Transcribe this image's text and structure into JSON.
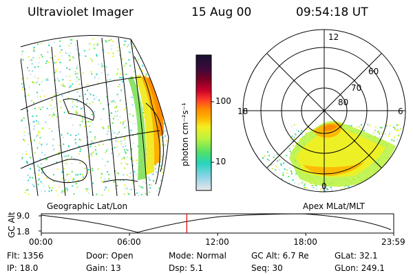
{
  "header": {
    "instrument": "Ultraviolet Imager",
    "date": "15 Aug 00",
    "time": "09:54:18 UT"
  },
  "colorbar": {
    "unit_label": "photon cm⁻²s⁻¹",
    "ticks": [
      "100",
      "10"
    ],
    "colors": [
      "#1a1030",
      "#3b0a3a",
      "#7a0025",
      "#c8002a",
      "#ff3a2a",
      "#ff8c00",
      "#ffb000",
      "#f3ef20",
      "#b9f23c",
      "#4fe06a",
      "#25d4bc",
      "#8fd3e8",
      "#e8e8e8"
    ]
  },
  "polar_plot": {
    "mlt_labels": {
      "top": "12",
      "left": "18",
      "right": "6",
      "bottom": "0"
    },
    "lat_labels": [
      "60",
      "70",
      "80"
    ]
  },
  "map_labels": {
    "left": "Geographic Lat/Lon",
    "right": "Apex MLat/MLT"
  },
  "altitude_strip": {
    "axis_label": "GC Alt",
    "y_ticks": [
      "9.0",
      "1.8"
    ],
    "time_ticks": [
      "00:00",
      "06:00",
      "12:00",
      "18:00",
      "23:59"
    ],
    "marker_time": "09:54",
    "marker_color": "#e00000"
  },
  "info": {
    "flt": "Flt: 1356",
    "ip": "IP: 18.0",
    "door": "Door: Open",
    "gain": "Gain: 13",
    "mode": "Mode: Normal",
    "dsp": "Dsp:    5.1",
    "gcalt": "GC Alt: 6.7 Re",
    "seq": "Seq: 30",
    "glat": "GLat:  32.1",
    "glon": "GLon: 249.1"
  }
}
